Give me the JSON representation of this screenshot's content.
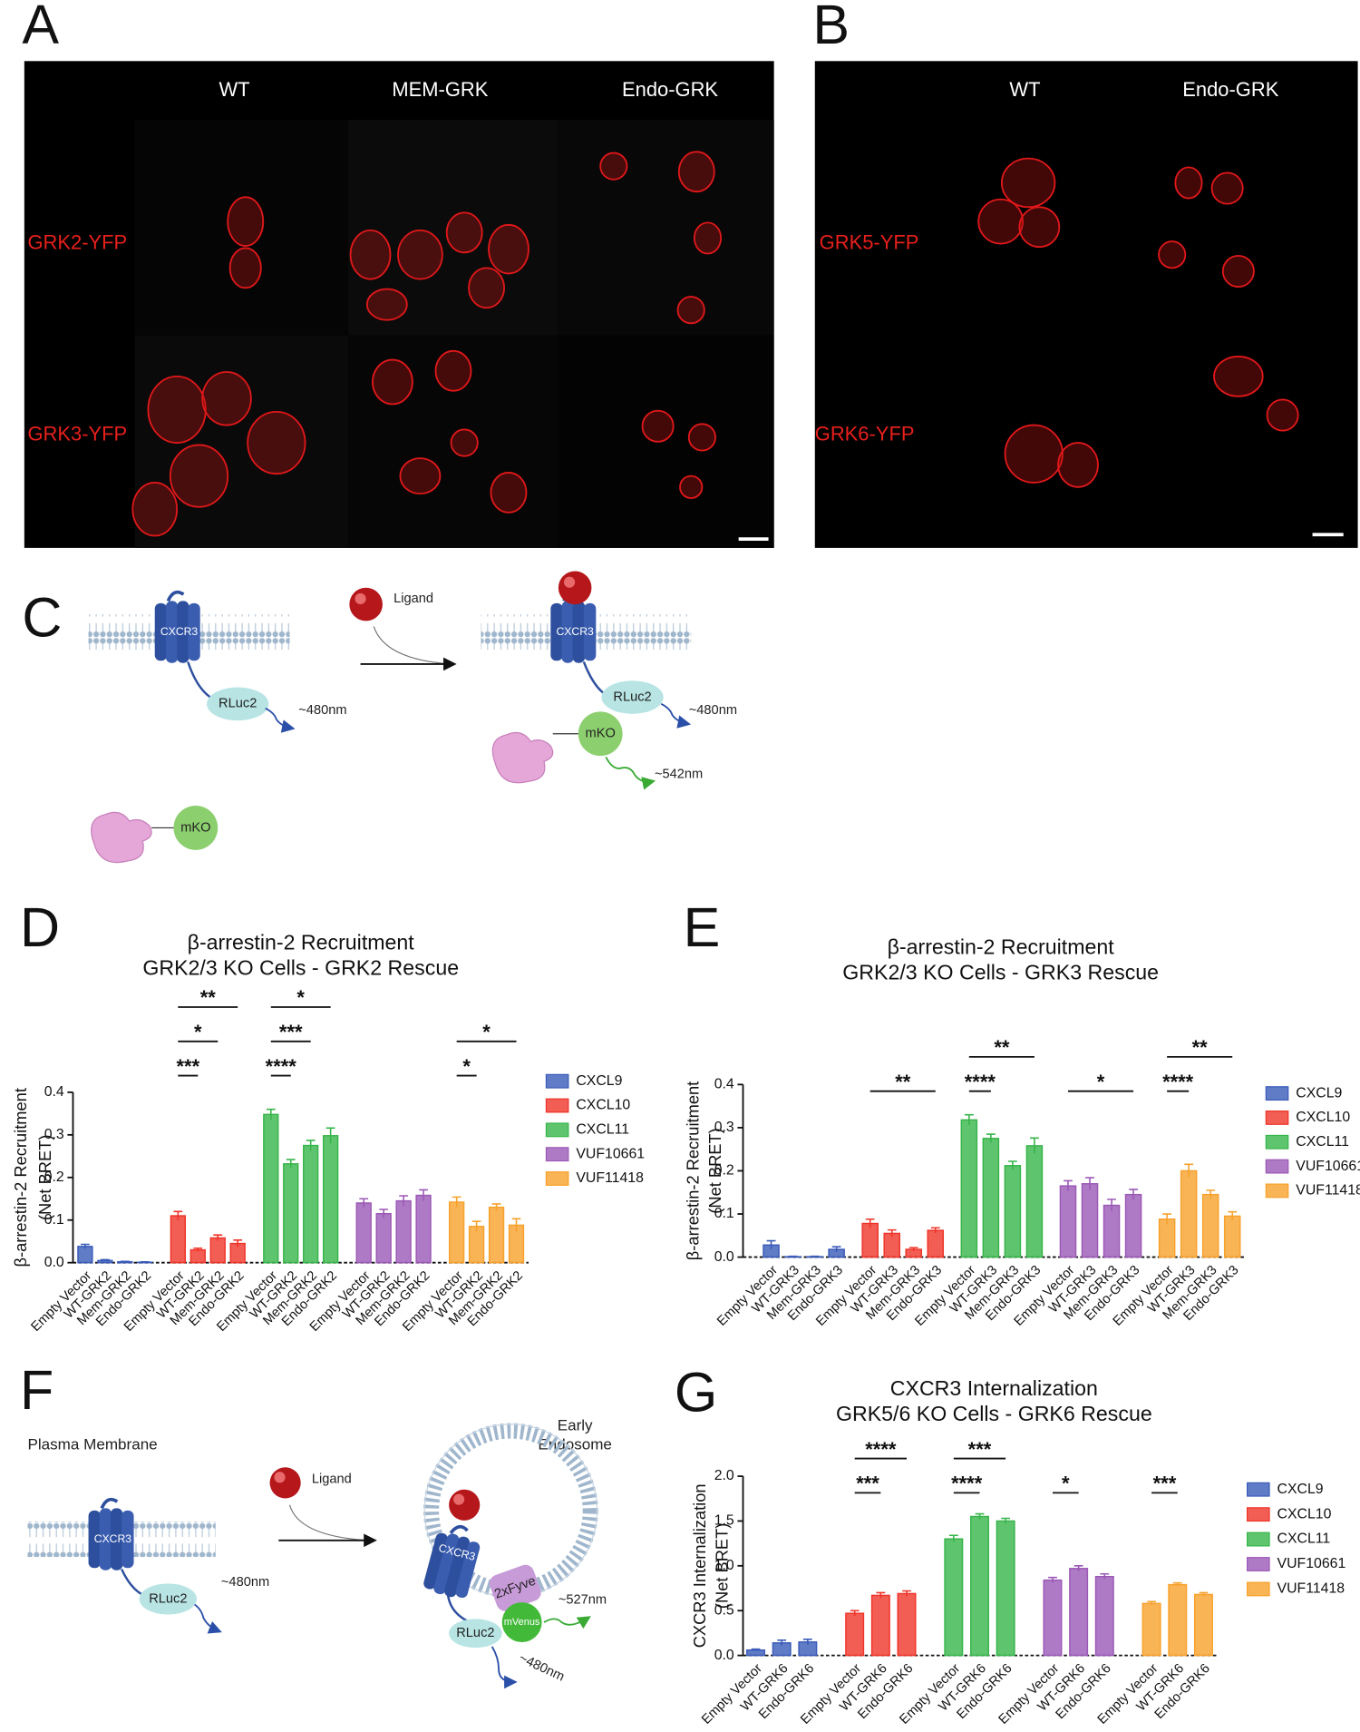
{
  "panel_labels": [
    "A",
    "B",
    "C",
    "D",
    "E",
    "F",
    "G"
  ],
  "panel_a": {
    "columns": [
      "WT",
      "MEM-GRK",
      "Endo-GRK"
    ],
    "rows": [
      "GRK2-YFP",
      "GRK3-YFP"
    ]
  },
  "panel_b": {
    "columns": [
      "WT",
      "Endo-GRK"
    ],
    "rows": [
      "GRK5-YFP",
      "GRK6-YFP"
    ]
  },
  "panel_c": {
    "receptor": "CXCR3",
    "donor": "RLuc2",
    "donor_emission": "~480nm",
    "ligand": "Ligand",
    "acceptor": "mKO",
    "acceptor_emission": "~542nm"
  },
  "panel_f": {
    "membrane": "Plasma Membrane",
    "receptor": "CXCR3",
    "donor": "RLuc2",
    "donor_emission": "~480nm",
    "ligand": "Ligand",
    "compartment": [
      "Early",
      "Endosome"
    ],
    "domain": "2xFyve",
    "acceptor": "mVenus",
    "acceptor_emission": "~527nm"
  },
  "chart_data": [
    {
      "type": "bar",
      "title": "β-arrestin-2 Recruitment",
      "subtitle": "GRK2/3 KO Cells - GRK2 Rescue",
      "ylabel": [
        "β-arrestin-2 Recruitment",
        "(Net BRET)"
      ],
      "categories": [
        "Empty Vector",
        "WT-GRK2",
        "Mem-GRK2",
        "Endo-GRK2"
      ],
      "series": [
        {
          "name": "CXCL9",
          "color": "#3a5bb8",
          "values": [
            0.038,
            0.005,
            0.002,
            0.001
          ],
          "errors": [
            0.005,
            0.002,
            0.001,
            0.001
          ]
        },
        {
          "name": "CXCL10",
          "color": "#ef3429",
          "values": [
            0.11,
            0.03,
            0.058,
            0.045
          ],
          "errors": [
            0.01,
            0.004,
            0.007,
            0.008
          ]
        },
        {
          "name": "CXCL11",
          "color": "#37b54a",
          "values": [
            0.348,
            0.232,
            0.275,
            0.298
          ],
          "errors": [
            0.012,
            0.01,
            0.012,
            0.018
          ]
        },
        {
          "name": "VUF10661",
          "color": "#9b59b6",
          "values": [
            0.14,
            0.115,
            0.145,
            0.158
          ],
          "errors": [
            0.01,
            0.01,
            0.012,
            0.013
          ]
        },
        {
          "name": "VUF11418",
          "color": "#f7a12c",
          "values": [
            0.142,
            0.085,
            0.13,
            0.088
          ],
          "errors": [
            0.012,
            0.012,
            0.008,
            0.015
          ]
        }
      ],
      "ylim": [
        0,
        0.4
      ],
      "yticks": [
        {
          "value": 0,
          "label": "0.0"
        },
        0.1,
        0.2,
        0.3,
        0.4
      ],
      "annotations": [
        {
          "text": "***",
          "series": 1,
          "from": 0,
          "to": 1
        },
        {
          "text": "*",
          "series": 1,
          "from": 0,
          "to": 2
        },
        {
          "text": "**",
          "series": 1,
          "from": 0,
          "to": 3
        },
        {
          "text": "****",
          "series": 2,
          "from": 0,
          "to": 1
        },
        {
          "text": "***",
          "series": 2,
          "from": 0,
          "to": 2
        },
        {
          "text": "*",
          "series": 2,
          "from": 0,
          "to": 3
        },
        {
          "text": "*",
          "series": 4,
          "from": 0,
          "to": 1
        },
        {
          "text": "*",
          "series": 4,
          "from": 0,
          "to": 3
        }
      ]
    },
    {
      "type": "bar",
      "title": "β-arrestin-2 Recruitment",
      "subtitle": "GRK2/3 KO Cells - GRK3 Rescue",
      "ylabel": [
        "β-arrestin-2 Recruitment",
        "(Net BRET)"
      ],
      "categories": [
        "Empty Vector",
        "WT-GRK3",
        "Mem-GRK3",
        "Endo-GRK3"
      ],
      "series": [
        {
          "name": "CXCL9",
          "color": "#3a5bb8",
          "values": [
            0.028,
            0.001,
            0.001,
            0.018
          ],
          "errors": [
            0.01,
            0.001,
            0.001,
            0.006
          ]
        },
        {
          "name": "CXCL10",
          "color": "#ef3429",
          "values": [
            0.078,
            0.055,
            0.018,
            0.062
          ],
          "errors": [
            0.01,
            0.008,
            0.004,
            0.006
          ]
        },
        {
          "name": "CXCL11",
          "color": "#37b54a",
          "values": [
            0.318,
            0.275,
            0.212,
            0.258
          ],
          "errors": [
            0.012,
            0.01,
            0.01,
            0.018
          ]
        },
        {
          "name": "VUF10661",
          "color": "#9b59b6",
          "values": [
            0.165,
            0.17,
            0.12,
            0.145
          ],
          "errors": [
            0.012,
            0.014,
            0.014,
            0.012
          ]
        },
        {
          "name": "VUF11418",
          "color": "#f7a12c",
          "values": [
            0.088,
            0.2,
            0.145,
            0.095
          ],
          "errors": [
            0.012,
            0.015,
            0.01,
            0.01
          ]
        }
      ],
      "ylim": [
        0,
        0.4
      ],
      "yticks": [
        {
          "value": 0,
          "label": "0.0"
        },
        0.1,
        0.2,
        0.3,
        0.4
      ],
      "annotations": [
        {
          "text": "**",
          "series": 1,
          "from": 0,
          "to": 3
        },
        {
          "text": "****",
          "series": 2,
          "from": 0,
          "to": 1
        },
        {
          "text": "**",
          "series": 2,
          "from": 0,
          "to": 3
        },
        {
          "text": "*",
          "series": 3,
          "from": 0,
          "to": 3
        },
        {
          "text": "****",
          "series": 4,
          "from": 0,
          "to": 1
        },
        {
          "text": "**",
          "series": 4,
          "from": 0,
          "to": 3
        }
      ]
    },
    {
      "type": "bar",
      "title": "CXCR3 Internalization",
      "subtitle": "GRK5/6 KO Cells - GRK6 Rescue",
      "ylabel": [
        "CXCR3 Internalization",
        "(Net BRET)"
      ],
      "categories": [
        "Empty Vector",
        "WT-GRK6",
        "Endo-GRK6"
      ],
      "series": [
        {
          "name": "CXCL9",
          "color": "#3a5bb8",
          "values": [
            0.06,
            0.14,
            0.15
          ],
          "errors": [
            0.01,
            0.03,
            0.03
          ]
        },
        {
          "name": "CXCL10",
          "color": "#ef3429",
          "values": [
            0.47,
            0.67,
            0.69
          ],
          "errors": [
            0.03,
            0.03,
            0.03
          ]
        },
        {
          "name": "CXCL11",
          "color": "#37b54a",
          "values": [
            1.3,
            1.55,
            1.5
          ],
          "errors": [
            0.04,
            0.03,
            0.03
          ]
        },
        {
          "name": "VUF10661",
          "color": "#9b59b6",
          "values": [
            0.84,
            0.97,
            0.88
          ],
          "errors": [
            0.03,
            0.03,
            0.03
          ]
        },
        {
          "name": "VUF11418",
          "color": "#f7a12c",
          "values": [
            0.58,
            0.79,
            0.68
          ],
          "errors": [
            0.02,
            0.02,
            0.02
          ]
        }
      ],
      "ylim": [
        0,
        2
      ],
      "yticks": [
        {
          "value": 0,
          "label": "0.0"
        },
        0.5,
        {
          "value": 1,
          "label": "1.0"
        },
        1.5,
        {
          "value": 2,
          "label": "2.0"
        }
      ],
      "annotations": [
        {
          "text": "***",
          "series": 1,
          "from": 0,
          "to": 1
        },
        {
          "text": "****",
          "series": 1,
          "from": 0,
          "to": 2
        },
        {
          "text": "****",
          "series": 2,
          "from": 0,
          "to": 1
        },
        {
          "text": "***",
          "series": 2,
          "from": 0,
          "to": 2
        },
        {
          "text": "*",
          "series": 3,
          "from": 0,
          "to": 1
        },
        {
          "text": "***",
          "series": 4,
          "from": 0,
          "to": 1
        }
      ]
    }
  ]
}
